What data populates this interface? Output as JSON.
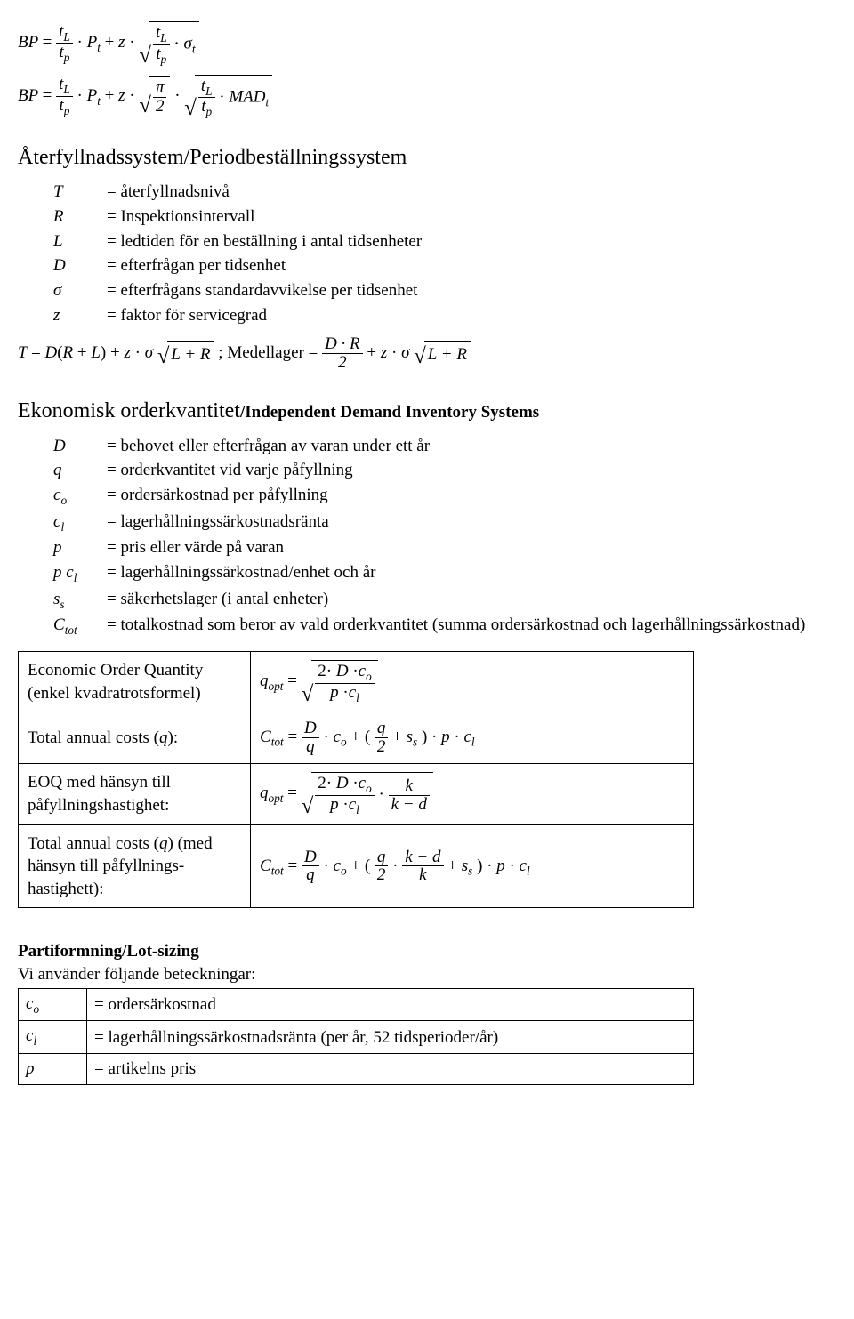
{
  "eq_top": {
    "e1": {
      "lhs_BP": "BP",
      "tL": "t",
      "tL_sub": "L",
      "tp": "t",
      "tp_sub": "p",
      "Pt": "P",
      "Pt_sub": "t",
      "plus_z": "z",
      "sigma_t": "σ",
      "sigma_t_sub": "t"
    },
    "e2": {
      "lhs_BP": "BP",
      "tL": "t",
      "tL_sub": "L",
      "tp": "t",
      "tp_sub": "p",
      "Pt": "P",
      "Pt_sub": "t",
      "plus_z": "z",
      "pi": "π",
      "two": "2",
      "MAD": "MAD",
      "MAD_sub": "t"
    }
  },
  "sect1": {
    "title": "Återfyllnadssystem/Periodbeställningssystem",
    "defs": [
      {
        "sym": "T",
        "desc": "= återfyllnadsnivå"
      },
      {
        "sym": "R",
        "desc": "= Inspektionsintervall"
      },
      {
        "sym": "L",
        "desc": "= ledtiden för en beställning i antal tidsenheter"
      },
      {
        "sym": "D",
        "desc": "= efterfrågan per tidsenhet"
      },
      {
        "sym": "σ",
        "desc": "= efterfrågans standardavvikelse per tidsenhet"
      },
      {
        "sym": "z",
        "desc": "= faktor för servicegrad"
      }
    ],
    "formula": {
      "T": "T",
      "D": "D",
      "R": "R",
      "L": "L",
      "z": "z",
      "sigma": "σ",
      "plusR": "L + R",
      "medellager": "Medellager",
      "DR": "D · R",
      "two": "2"
    }
  },
  "sect2": {
    "title_main": "Ekonomisk orderkvantitet",
    "title_tail": "/Independent Demand Inventory Systems",
    "defs": [
      {
        "sym": "D",
        "desc": "= behovet eller efterfrågan av varan under ett år"
      },
      {
        "sym": "q",
        "desc": "= orderkvantitet vid varje påfyllning"
      },
      {
        "sym": "c_o",
        "sub": "o",
        "desc": "= ordersärkostnad per påfyllning"
      },
      {
        "sym": "c_l",
        "sub": "l",
        "desc": "= lagerhållningssärkostnadsränta"
      },
      {
        "sym": "p",
        "desc": "= pris eller värde på varan"
      },
      {
        "sym": "p c_l",
        "sub": "l",
        "pre": "p ",
        "base": "c",
        "desc": "= lagerhållningssärkostnad/enhet och år"
      },
      {
        "sym": "s_s",
        "sub": "s",
        "desc": "= säkerhetslager (i antal enheter)"
      },
      {
        "sym": "C_tot",
        "sub": "tot",
        "desc": "= totalkostnad som beror av vald orderkvantitet (summa ordersärkostnad och lagerhållningssärkostnad)"
      }
    ],
    "table": [
      {
        "label": "Economic Order Quantity\n(enkel kvadratrotsformel)",
        "formula_id": "eoq"
      },
      {
        "label": "Total annual costs (q):",
        "formula_id": "tac1",
        "italic_q": true
      },
      {
        "label": "EOQ med hänsyn till\npåfyllningshastighet:",
        "formula_id": "eoq2"
      },
      {
        "label": "Total annual costs (q) (med hänsyn till påfyllnings-hastighett):",
        "formula_id": "tac2",
        "italic_q": true
      }
    ]
  },
  "sect3": {
    "title": "Partiformning/Lot-sizing",
    "sub": "Vi använder följande beteckningar:",
    "defs": [
      {
        "sym": "c",
        "sub": "o",
        "desc": "= ordersärkostnad"
      },
      {
        "sym": "c",
        "sub": "l",
        "desc": "= lagerhållningssärkostnadsränta (per år, 52 tidsperioder/år)"
      },
      {
        "sym": "p",
        "desc": "= artikelns pris"
      }
    ]
  },
  "vars": {
    "q": "q",
    "opt": "opt",
    "two": "2",
    "D": "D",
    "c": "c",
    "o": "o",
    "l": "l",
    "p": "p",
    "Ctot": "C",
    "tot": "tot",
    "ss": "s",
    "s": "s",
    "k": "k",
    "d": "d",
    "kmd": "k − d"
  }
}
